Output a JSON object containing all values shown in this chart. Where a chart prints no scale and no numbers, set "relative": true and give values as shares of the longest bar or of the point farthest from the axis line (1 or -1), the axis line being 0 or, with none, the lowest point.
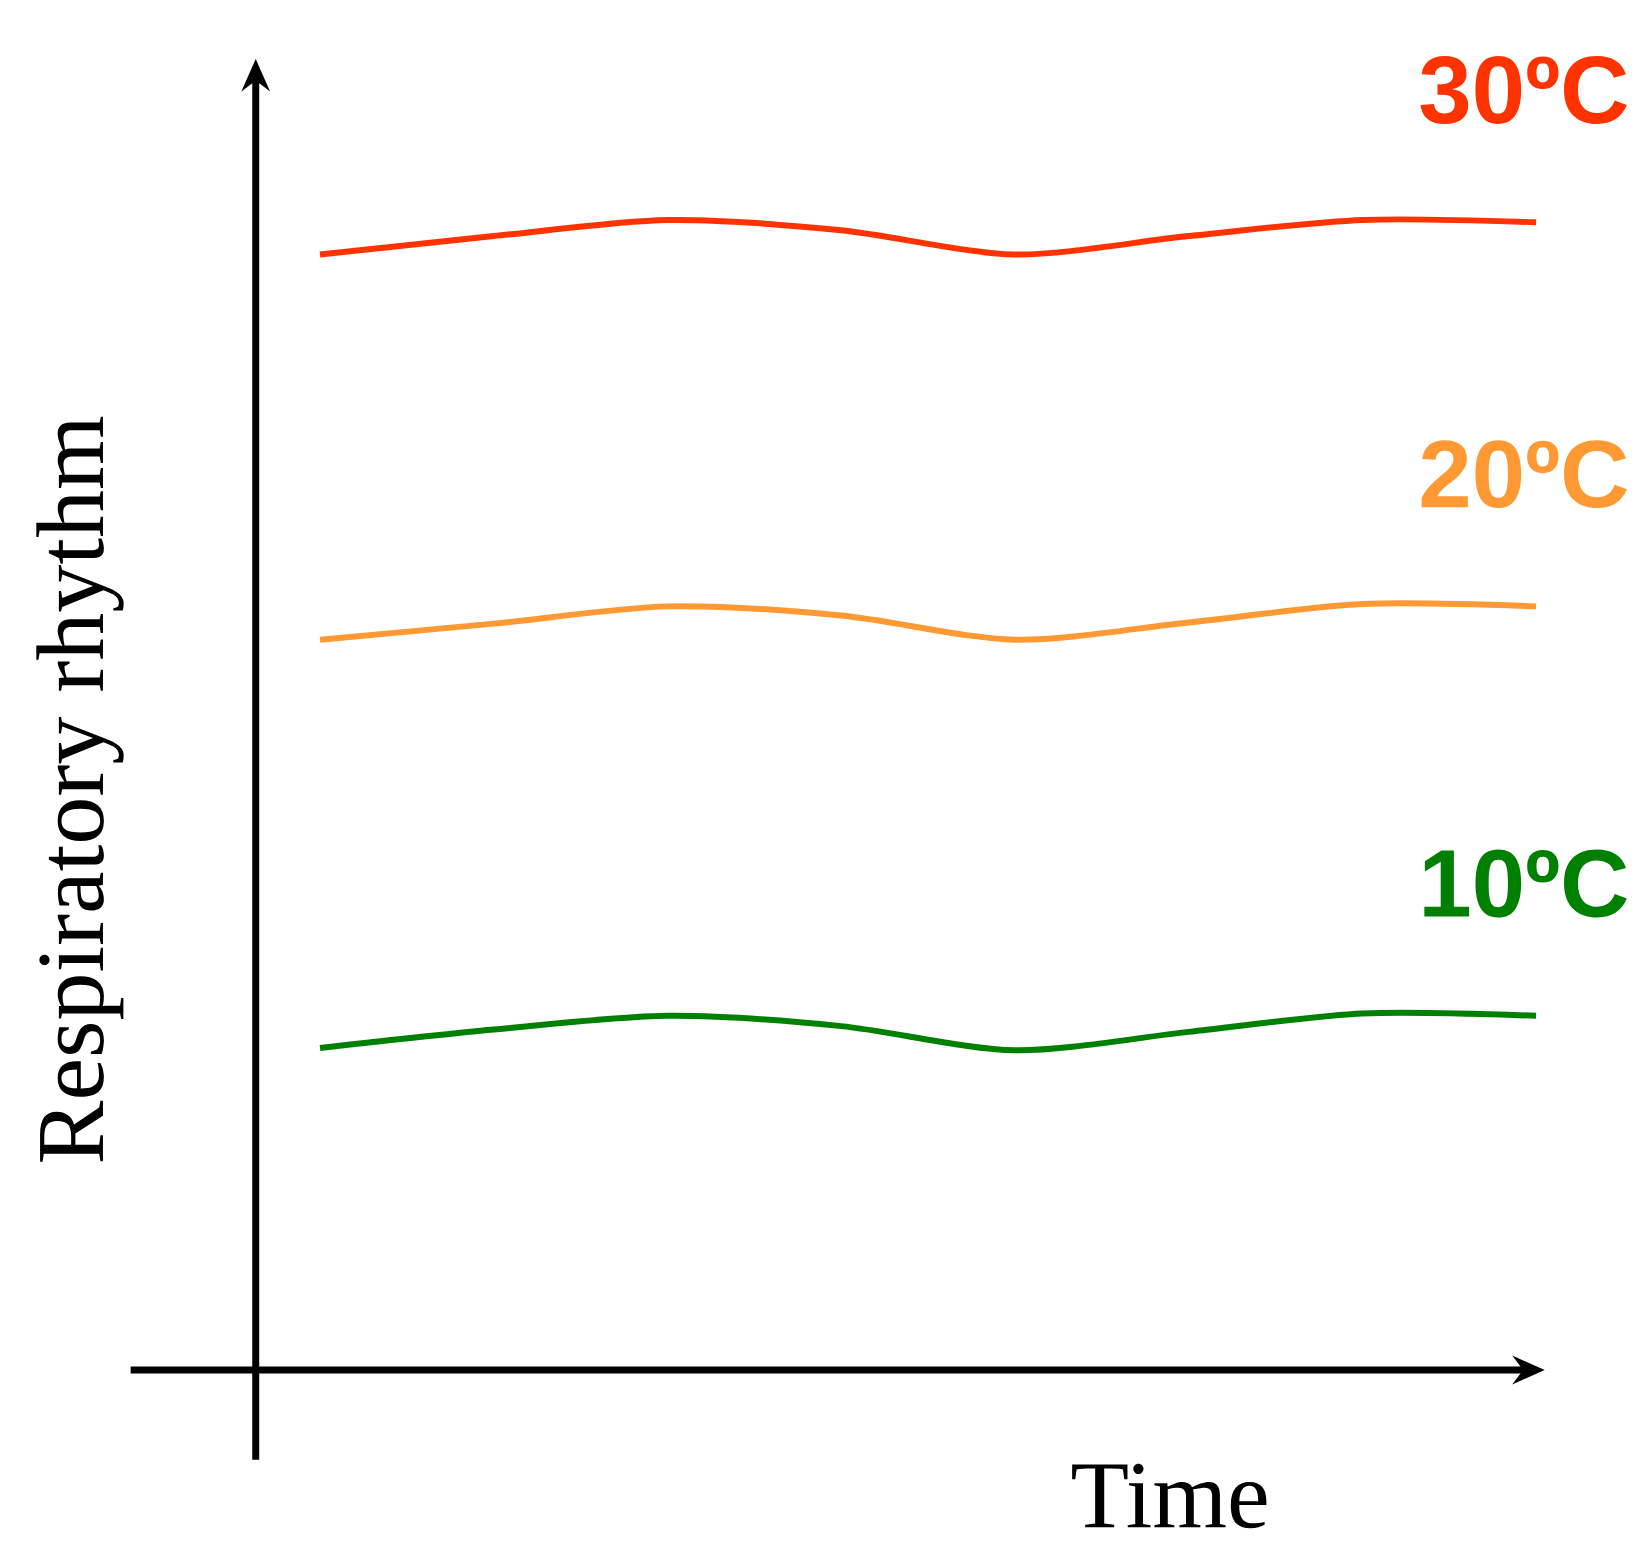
{
  "chart_data": {
    "type": "line",
    "relative": true,
    "xlabel": "Time",
    "ylabel": "Respiratory rhythm",
    "categories": [
      null,
      null,
      null,
      null,
      null,
      null,
      null,
      null
    ],
    "series": [
      {
        "name": "30ºC",
        "color": "#ff3300",
        "values": [
          0.97,
          0.986,
          1.0,
          0.991,
          0.97,
          0.986,
          1.0,
          0.998
        ]
      },
      {
        "name": "20ºC",
        "color": "#ff9933",
        "values": [
          0.635,
          0.649,
          0.664,
          0.656,
          0.635,
          0.65,
          0.666,
          0.664
        ]
      },
      {
        "name": "10ºC",
        "color": "#008000",
        "values": [
          0.28,
          0.296,
          0.308,
          0.299,
          0.278,
          0.294,
          0.31,
          0.308
        ]
      }
    ]
  }
}
